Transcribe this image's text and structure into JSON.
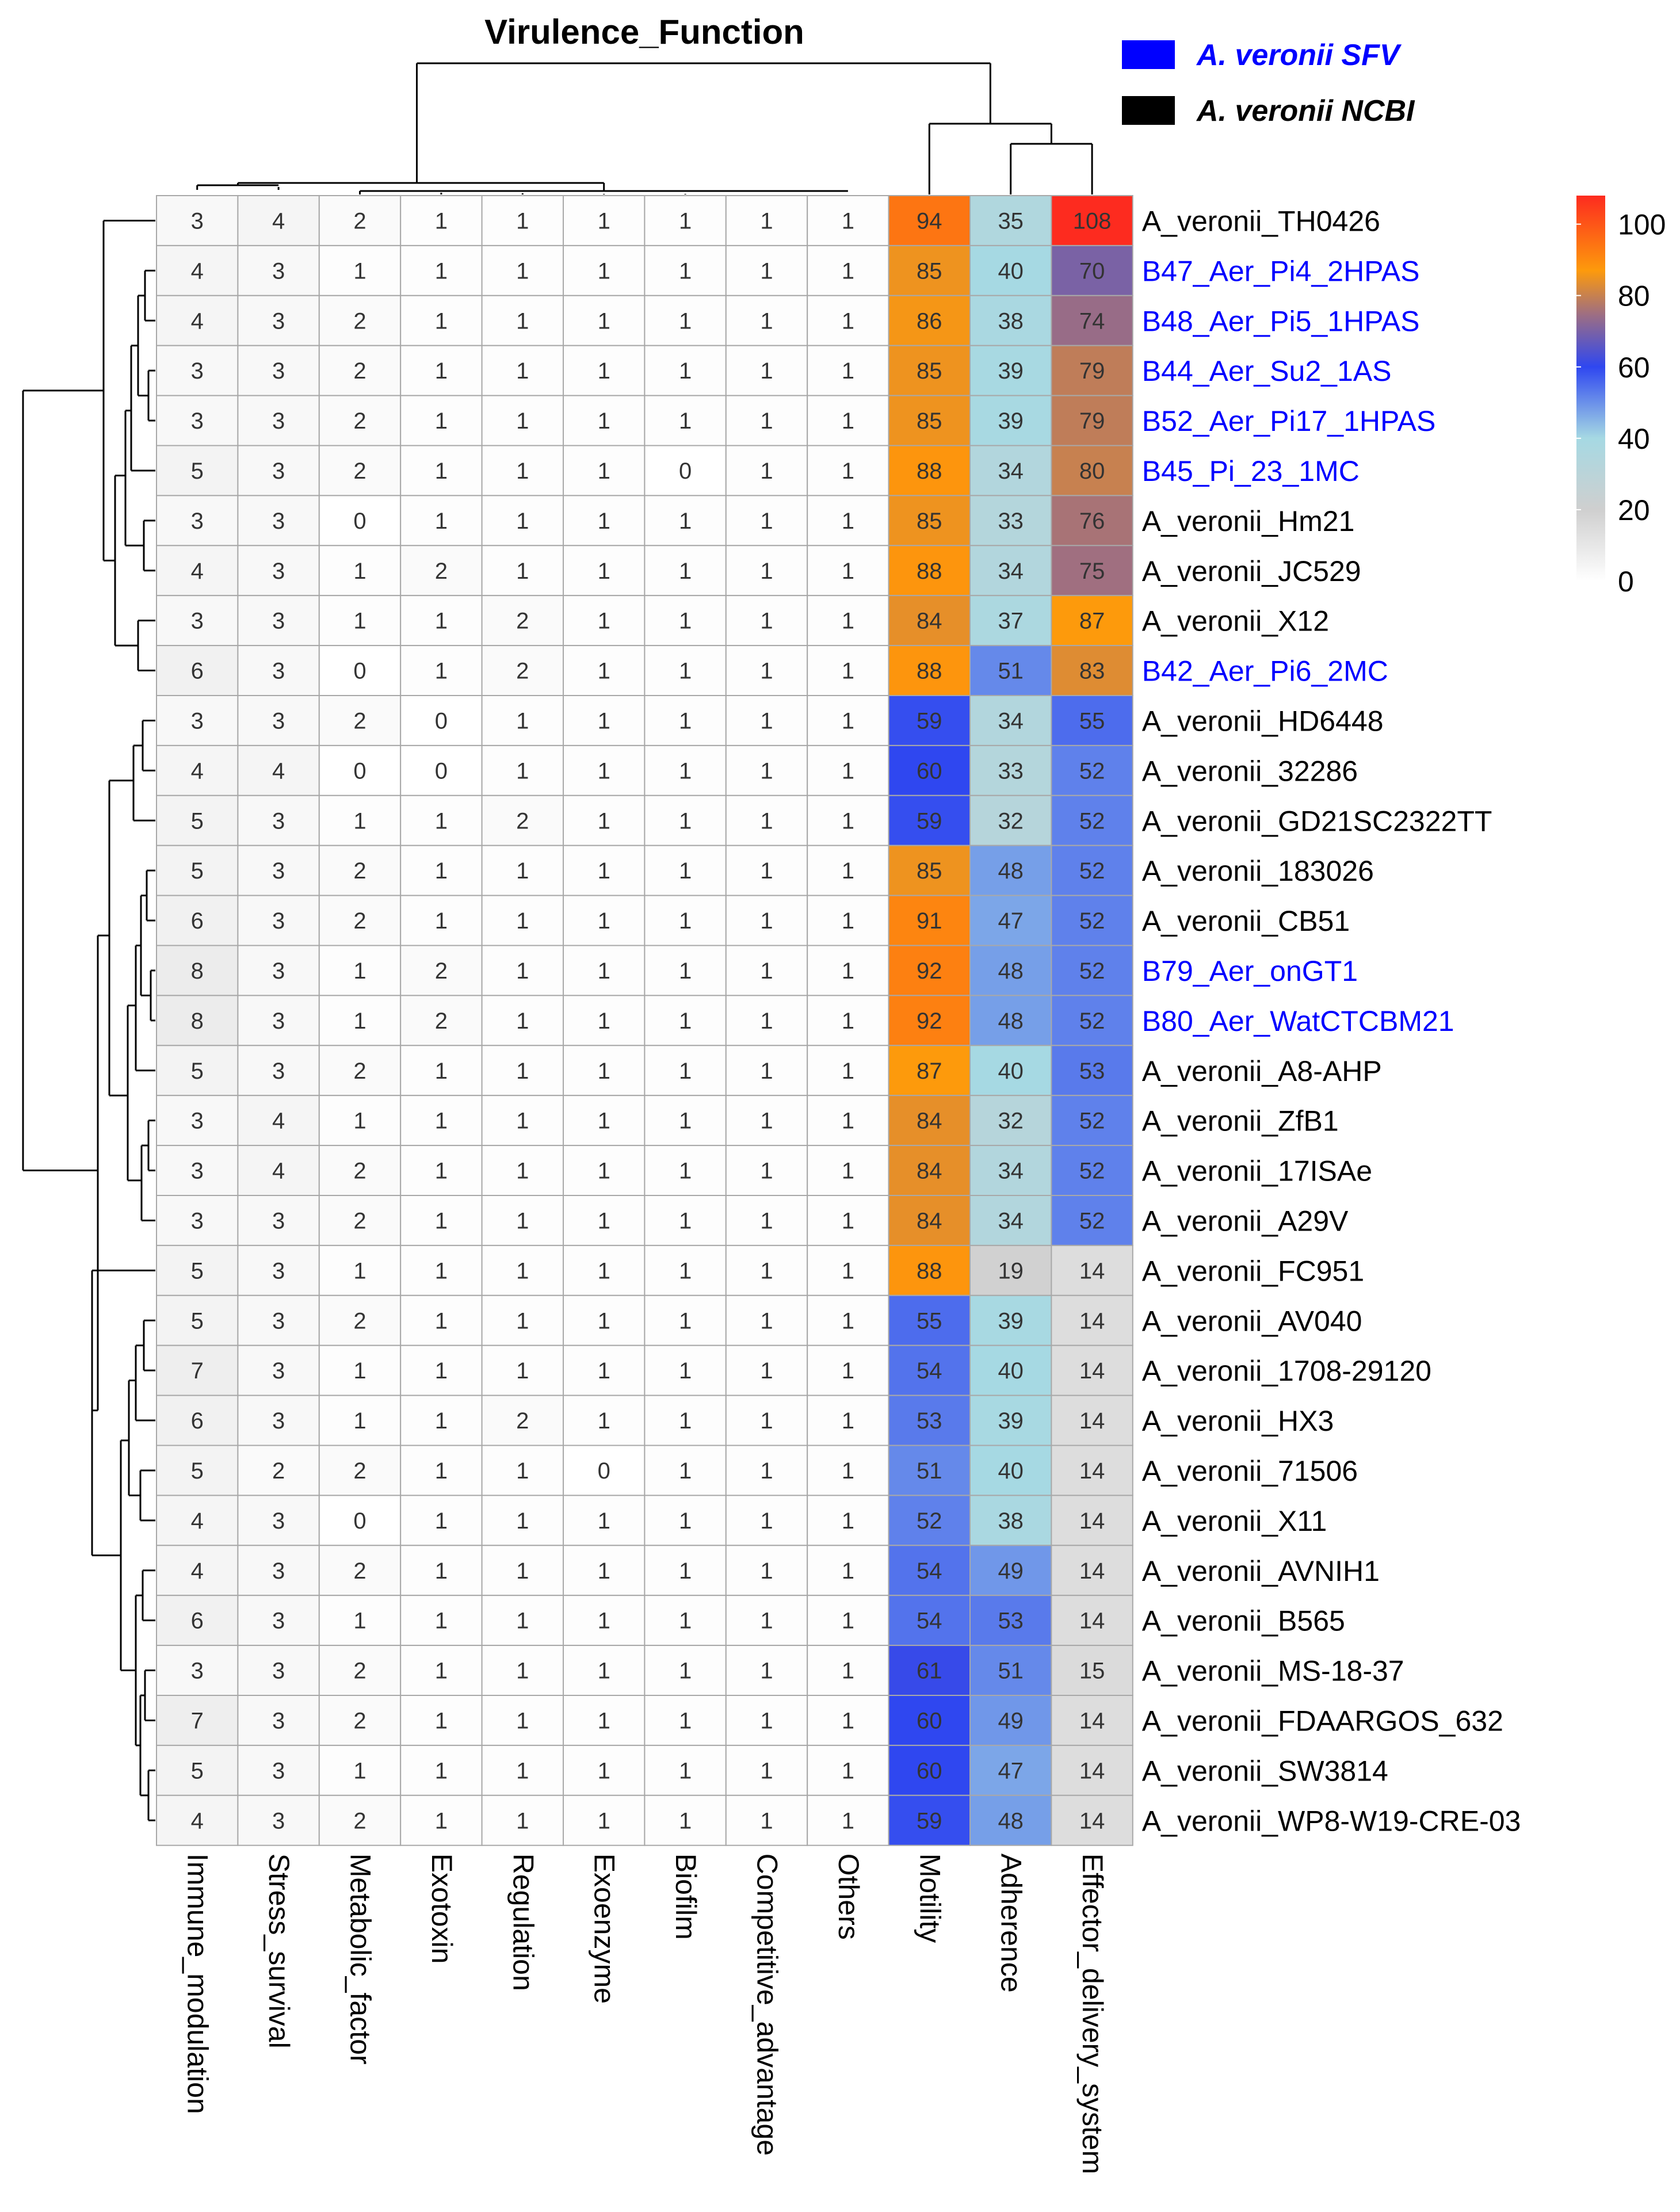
{
  "chart_data": {
    "type": "heatmap",
    "title": "Virulence_Function",
    "legend": {
      "items": [
        {
          "label": "A. veronii SFV",
          "color": "#0000ff"
        },
        {
          "label": "A. veronii NCBI",
          "color": "#000000"
        }
      ]
    },
    "colorbar": {
      "ticks": [
        0,
        20,
        40,
        60,
        80,
        100
      ],
      "range": [
        0,
        108
      ],
      "stops": [
        {
          "v": 0,
          "c": "#ffffff"
        },
        {
          "v": 20,
          "c": "#cfcfcf"
        },
        {
          "v": 40,
          "c": "#a6d9e3"
        },
        {
          "v": 60,
          "c": "#2f47f0"
        },
        {
          "v": 75,
          "c": "#a06f80"
        },
        {
          "v": 87,
          "c": "#fd9a0c"
        },
        {
          "v": 108,
          "c": "#fd2b1f"
        }
      ]
    },
    "columns": [
      "Immune_modulation",
      "Stress_survival",
      "Metabolic_factor",
      "Exotoxin",
      "Regulation",
      "Exoenzyme",
      "Biofilm",
      "Competitive_advantage",
      "Others",
      "Motility",
      "Adherence",
      "Effector_delivery_system"
    ],
    "rows": [
      {
        "label": "A_veronii_TH0426",
        "group": "NCBI",
        "values": [
          3,
          4,
          2,
          1,
          1,
          1,
          1,
          1,
          1,
          94,
          35,
          108
        ]
      },
      {
        "label": "B47_Aer_Pi4_2HPAS",
        "group": "SFV",
        "values": [
          4,
          3,
          1,
          1,
          1,
          1,
          1,
          1,
          1,
          85,
          40,
          70
        ]
      },
      {
        "label": "B48_Aer_Pi5_1HPAS",
        "group": "SFV",
        "values": [
          4,
          3,
          2,
          1,
          1,
          1,
          1,
          1,
          1,
          86,
          38,
          74
        ]
      },
      {
        "label": "B44_Aer_Su2_1AS",
        "group": "SFV",
        "values": [
          3,
          3,
          2,
          1,
          1,
          1,
          1,
          1,
          1,
          85,
          39,
          79
        ]
      },
      {
        "label": "B52_Aer_Pi17_1HPAS",
        "group": "SFV",
        "values": [
          3,
          3,
          2,
          1,
          1,
          1,
          1,
          1,
          1,
          85,
          39,
          79
        ]
      },
      {
        "label": "B45_Pi_23_1MC",
        "group": "SFV",
        "values": [
          5,
          3,
          2,
          1,
          1,
          1,
          0,
          1,
          1,
          88,
          34,
          80
        ]
      },
      {
        "label": "A_veronii_Hm21",
        "group": "NCBI",
        "values": [
          3,
          3,
          0,
          1,
          1,
          1,
          1,
          1,
          1,
          85,
          33,
          76
        ]
      },
      {
        "label": "A_veronii_JC529",
        "group": "NCBI",
        "values": [
          4,
          3,
          1,
          2,
          1,
          1,
          1,
          1,
          1,
          88,
          34,
          75
        ]
      },
      {
        "label": "A_veronii_X12",
        "group": "NCBI",
        "values": [
          3,
          3,
          1,
          1,
          2,
          1,
          1,
          1,
          1,
          84,
          37,
          87
        ]
      },
      {
        "label": "B42_Aer_Pi6_2MC",
        "group": "SFV",
        "values": [
          6,
          3,
          0,
          1,
          2,
          1,
          1,
          1,
          1,
          88,
          51,
          83
        ]
      },
      {
        "label": "A_veronii_HD6448",
        "group": "NCBI",
        "values": [
          3,
          3,
          2,
          0,
          1,
          1,
          1,
          1,
          1,
          59,
          34,
          55
        ]
      },
      {
        "label": "A_veronii_32286",
        "group": "NCBI",
        "values": [
          4,
          4,
          0,
          0,
          1,
          1,
          1,
          1,
          1,
          60,
          33,
          52
        ]
      },
      {
        "label": "A_veronii_GD21SC2322TT",
        "group": "NCBI",
        "values": [
          5,
          3,
          1,
          1,
          2,
          1,
          1,
          1,
          1,
          59,
          32,
          52
        ]
      },
      {
        "label": "A_veronii_183026",
        "group": "NCBI",
        "values": [
          5,
          3,
          2,
          1,
          1,
          1,
          1,
          1,
          1,
          85,
          48,
          52
        ]
      },
      {
        "label": "A_veronii_CB51",
        "group": "NCBI",
        "values": [
          6,
          3,
          2,
          1,
          1,
          1,
          1,
          1,
          1,
          91,
          47,
          52
        ]
      },
      {
        "label": "B79_Aer_onGT1",
        "group": "SFV",
        "values": [
          8,
          3,
          1,
          2,
          1,
          1,
          1,
          1,
          1,
          92,
          48,
          52
        ]
      },
      {
        "label": "B80_Aer_WatCTCBM21",
        "group": "SFV",
        "values": [
          8,
          3,
          1,
          2,
          1,
          1,
          1,
          1,
          1,
          92,
          48,
          52
        ]
      },
      {
        "label": "A_veronii_A8-AHP",
        "group": "NCBI",
        "values": [
          5,
          3,
          2,
          1,
          1,
          1,
          1,
          1,
          1,
          87,
          40,
          53
        ]
      },
      {
        "label": "A_veronii_ZfB1",
        "group": "NCBI",
        "values": [
          3,
          4,
          1,
          1,
          1,
          1,
          1,
          1,
          1,
          84,
          32,
          52
        ]
      },
      {
        "label": "A_veronii_17ISAe",
        "group": "NCBI",
        "values": [
          3,
          4,
          2,
          1,
          1,
          1,
          1,
          1,
          1,
          84,
          34,
          52
        ]
      },
      {
        "label": "A_veronii_A29V",
        "group": "NCBI",
        "values": [
          3,
          3,
          2,
          1,
          1,
          1,
          1,
          1,
          1,
          84,
          34,
          52
        ]
      },
      {
        "label": "A_veronii_FC951",
        "group": "NCBI",
        "values": [
          5,
          3,
          1,
          1,
          1,
          1,
          1,
          1,
          1,
          88,
          19,
          14
        ]
      },
      {
        "label": "A_veronii_AV040",
        "group": "NCBI",
        "values": [
          5,
          3,
          2,
          1,
          1,
          1,
          1,
          1,
          1,
          55,
          39,
          14
        ]
      },
      {
        "label": "A_veronii_1708-29120",
        "group": "NCBI",
        "values": [
          7,
          3,
          1,
          1,
          1,
          1,
          1,
          1,
          1,
          54,
          40,
          14
        ]
      },
      {
        "label": "A_veronii_HX3",
        "group": "NCBI",
        "values": [
          6,
          3,
          1,
          1,
          2,
          1,
          1,
          1,
          1,
          53,
          39,
          14
        ]
      },
      {
        "label": "A_veronii_71506",
        "group": "NCBI",
        "values": [
          5,
          2,
          2,
          1,
          1,
          0,
          1,
          1,
          1,
          51,
          40,
          14
        ]
      },
      {
        "label": "A_veronii_X11",
        "group": "NCBI",
        "values": [
          4,
          3,
          0,
          1,
          1,
          1,
          1,
          1,
          1,
          52,
          38,
          14
        ]
      },
      {
        "label": "A_veronii_AVNIH1",
        "group": "NCBI",
        "values": [
          4,
          3,
          2,
          1,
          1,
          1,
          1,
          1,
          1,
          54,
          49,
          14
        ]
      },
      {
        "label": "A_veronii_B565",
        "group": "NCBI",
        "values": [
          6,
          3,
          1,
          1,
          1,
          1,
          1,
          1,
          1,
          54,
          53,
          14
        ]
      },
      {
        "label": "A_veronii_MS-18-37",
        "group": "NCBI",
        "values": [
          3,
          3,
          2,
          1,
          1,
          1,
          1,
          1,
          1,
          61,
          51,
          15
        ]
      },
      {
        "label": "A_veronii_FDAARGOS_632",
        "group": "NCBI",
        "values": [
          7,
          3,
          2,
          1,
          1,
          1,
          1,
          1,
          1,
          60,
          49,
          14
        ]
      },
      {
        "label": "A_veronii_SW3814",
        "group": "NCBI",
        "values": [
          5,
          3,
          1,
          1,
          1,
          1,
          1,
          1,
          1,
          60,
          47,
          14
        ]
      },
      {
        "label": "A_veronii_WP8-W19-CRE-03",
        "group": "NCBI",
        "values": [
          4,
          3,
          2,
          1,
          1,
          1,
          1,
          1,
          1,
          59,
          48,
          14
        ]
      }
    ]
  }
}
